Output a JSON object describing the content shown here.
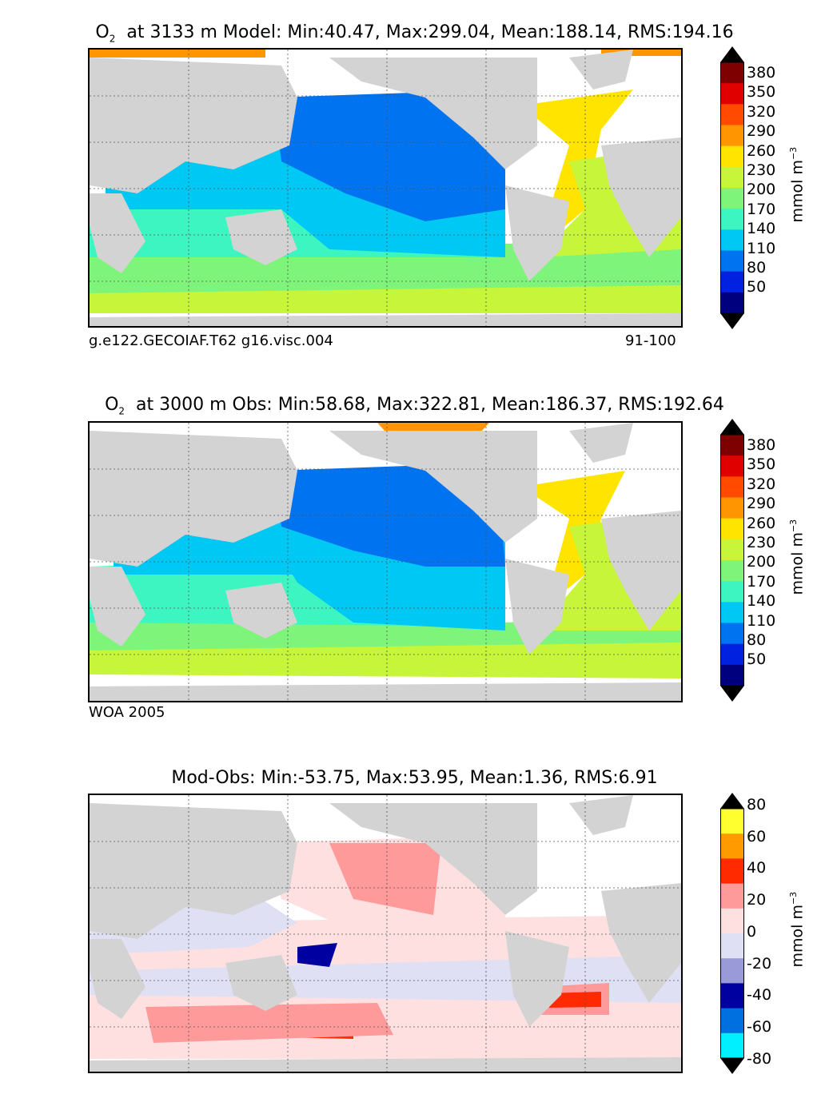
{
  "panels": [
    {
      "title_species": "O",
      "title_sub": "2",
      "title_rest": "at 3133 m Model: Min:40.47, Max:299.04, Mean:188.14, RMS:194.16",
      "foot_left": "g.e122.GECOIAF.T62 g16.visc.004",
      "foot_right": "91-100",
      "cbar_ticks": [
        "380",
        "350",
        "320",
        "290",
        "260",
        "230",
        "200",
        "170",
        "140",
        "110",
        "80",
        "50"
      ],
      "cbar_colors": [
        "#7f0000",
        "#e00000",
        "#ff4a00",
        "#ff9500",
        "#ffe400",
        "#c6f53a",
        "#7ef57a",
        "#3cf5c0",
        "#00c8f5",
        "#0073f0",
        "#0022e0",
        "#00007f"
      ],
      "unit": "mmol m",
      "unit_sup": "−3"
    },
    {
      "title_species": "O",
      "title_sub": "2",
      "title_rest": "at 3000 m Obs: Min:58.68, Max:322.81, Mean:186.37, RMS:192.64",
      "foot_left": "WOA 2005",
      "foot_right": "",
      "cbar_ticks": [
        "380",
        "350",
        "320",
        "290",
        "260",
        "230",
        "200",
        "170",
        "140",
        "110",
        "80",
        "50"
      ],
      "cbar_colors": [
        "#7f0000",
        "#e00000",
        "#ff4a00",
        "#ff9500",
        "#ffe400",
        "#c6f53a",
        "#7ef57a",
        "#3cf5c0",
        "#00c8f5",
        "#0073f0",
        "#0022e0",
        "#00007f"
      ],
      "unit": "mmol m",
      "unit_sup": "−3"
    },
    {
      "title_species": "",
      "title_sub": "",
      "title_rest": "Mod-Obs: Min:-53.75, Max:53.95, Mean:1.36, RMS:6.91",
      "foot_left": "",
      "foot_right": "",
      "cbar_ticks": [
        "80",
        "60",
        "40",
        "20",
        "0",
        "-20",
        "-40",
        "-60",
        "-80"
      ],
      "cbar_colors": [
        "#ffff30",
        "#ff9a00",
        "#ff2a00",
        "#ff9a9a",
        "#ffe0e0",
        "#e0e0f5",
        "#9a9ad8",
        "#0000a0",
        "#0070e0",
        "#00f0ff"
      ],
      "unit": "mmol m",
      "unit_sup": "−3"
    }
  ],
  "colors": {
    "land": "#d3d3d3",
    "nodata": "#ffffff",
    "contour": "#000000"
  }
}
